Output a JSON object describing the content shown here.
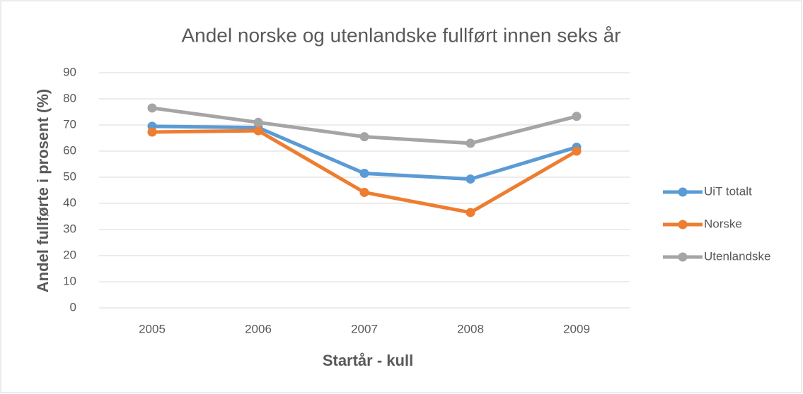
{
  "chart_data": {
    "type": "line",
    "title": "Andel norske og utenlandske fullført innen seks år",
    "x_label": "Startår - kull",
    "y_label": "Andel fullførte i prosent (%)",
    "categories": [
      "2005",
      "2006",
      "2007",
      "2008",
      "2009"
    ],
    "series": [
      {
        "name": "UiT totalt",
        "color": "#5b9bd5",
        "values": [
          69.5,
          69,
          51.5,
          49.3,
          61.5
        ]
      },
      {
        "name": "Norske",
        "color": "#ed7d31",
        "values": [
          67.3,
          67.8,
          44.2,
          36.5,
          60
        ]
      },
      {
        "name": "Utenlandske",
        "color": "#a5a5a5",
        "values": [
          76.5,
          71,
          65.5,
          63,
          73.3
        ]
      }
    ],
    "ylim": [
      0,
      90
    ],
    "yticks": [
      0,
      10,
      20,
      30,
      40,
      50,
      60,
      70,
      80,
      90
    ],
    "grid": true,
    "legend": "right"
  }
}
